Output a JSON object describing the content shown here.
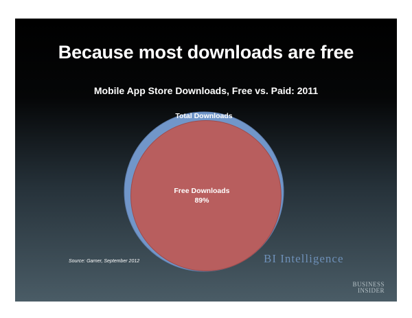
{
  "headline": "Because most downloads are free",
  "source": "Source: Garner, September 2012",
  "watermark": "BI Intelligence",
  "logo_lines": [
    "BUSINESS",
    "INSIDER"
  ],
  "colors": {
    "total": "#7196c9",
    "free": "#b85e5e",
    "total_stroke": "#5f7fae",
    "free_stroke": "#9f4b4b"
  },
  "chart_data": {
    "type": "venn",
    "title": "Mobile App Store Downloads, Free vs. Paid: 2011",
    "sets": [
      {
        "name": "Total Downloads",
        "value": 100,
        "label": "Total Downloads"
      },
      {
        "name": "Free Downloads",
        "value": 89,
        "label": "Free Downloads",
        "value_label": "89%"
      }
    ]
  }
}
